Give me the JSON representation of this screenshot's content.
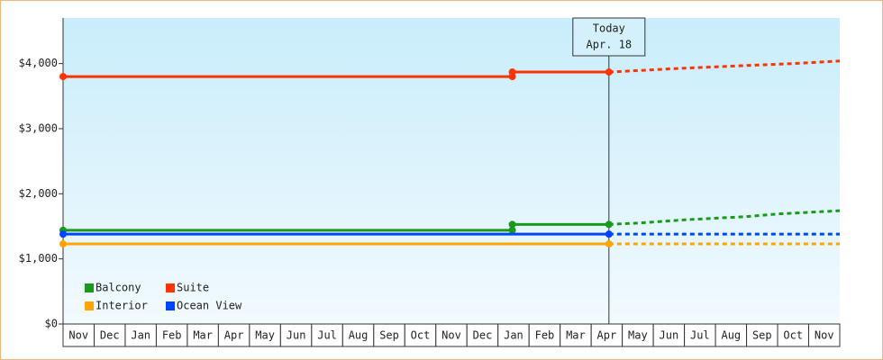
{
  "chart_data": {
    "type": "line",
    "categories": [
      "Nov",
      "Dec",
      "Jan",
      "Feb",
      "Mar",
      "Apr",
      "May",
      "Jun",
      "Jul",
      "Aug",
      "Sep",
      "Oct",
      "Nov",
      "Dec",
      "Jan",
      "Feb",
      "Mar",
      "Apr",
      "May",
      "Jun",
      "Jul",
      "Aug",
      "Sep",
      "Oct",
      "Nov"
    ],
    "xlim": [
      0,
      25
    ],
    "ylim": [
      0,
      4700
    ],
    "yticks": [
      {
        "value": 0,
        "label": "$0"
      },
      {
        "value": 1000,
        "label": "$1,000"
      },
      {
        "value": 2000,
        "label": "$2,000"
      },
      {
        "value": 3000,
        "label": "$3,000"
      },
      {
        "value": 4000,
        "label": "$4,000"
      }
    ],
    "today": {
      "lines": [
        "Today",
        "Apr. 18"
      ],
      "x": 17.57
    },
    "series": [
      {
        "name": "Balcony",
        "color": "#1a9a1a",
        "x": [
          0,
          14.46,
          14.46,
          17.57
        ],
        "values": [
          1440,
          1440,
          1530,
          1530
        ],
        "forecast_x": [
          17.57,
          18.5,
          20,
          22,
          23,
          25
        ],
        "forecast_values": [
          1530,
          1550,
          1600,
          1650,
          1690,
          1740
        ]
      },
      {
        "name": "Suite",
        "color": "#ff3300",
        "x": [
          0,
          14.46,
          14.46,
          17.57
        ],
        "values": [
          3800,
          3800,
          3870,
          3870
        ],
        "forecast_x": [
          17.57,
          18,
          20,
          22,
          23.5,
          25
        ],
        "forecast_values": [
          3870,
          3880,
          3930,
          3970,
          4000,
          4040
        ]
      },
      {
        "name": "Interior",
        "color": "#ffa500",
        "x": [
          0,
          17.57
        ],
        "values": [
          1230,
          1230
        ],
        "forecast_x": [
          17.57,
          25
        ],
        "forecast_values": [
          1230,
          1230
        ]
      },
      {
        "name": "Ocean View",
        "color": "#0044ff",
        "x": [
          0,
          17.57
        ],
        "values": [
          1380,
          1380
        ],
        "forecast_x": [
          17.57,
          25
        ],
        "forecast_values": [
          1380,
          1380
        ]
      }
    ]
  }
}
